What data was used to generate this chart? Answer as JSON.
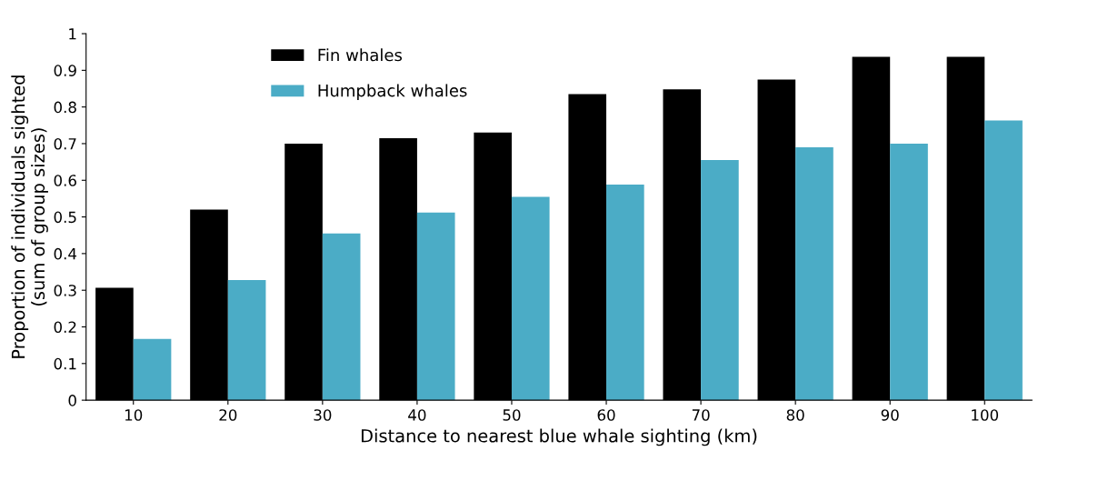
{
  "chart_data": {
    "type": "bar",
    "xlabel": "Distance to nearest blue whale sighting (km)",
    "ylabel": "Proportion of individuals sighted\n(sum of group sizes)",
    "categories": [
      "10",
      "20",
      "30",
      "40",
      "50",
      "60",
      "70",
      "80",
      "90",
      "100"
    ],
    "series": [
      {
        "name": "Fin whales",
        "color": "#000000",
        "values": [
          0.307,
          0.52,
          0.7,
          0.715,
          0.73,
          0.835,
          0.848,
          0.875,
          0.937,
          0.937
        ]
      },
      {
        "name": "Humpback whales",
        "color": "#4bacc6",
        "values": [
          0.167,
          0.328,
          0.455,
          0.512,
          0.555,
          0.588,
          0.655,
          0.69,
          0.7,
          0.763
        ]
      }
    ],
    "ylim": [
      0,
      1
    ],
    "yticks": [
      0,
      0.1,
      0.2,
      0.3,
      0.4,
      0.5,
      0.6,
      0.7,
      0.8,
      0.9,
      1
    ],
    "grid": false,
    "legend": "top left"
  }
}
